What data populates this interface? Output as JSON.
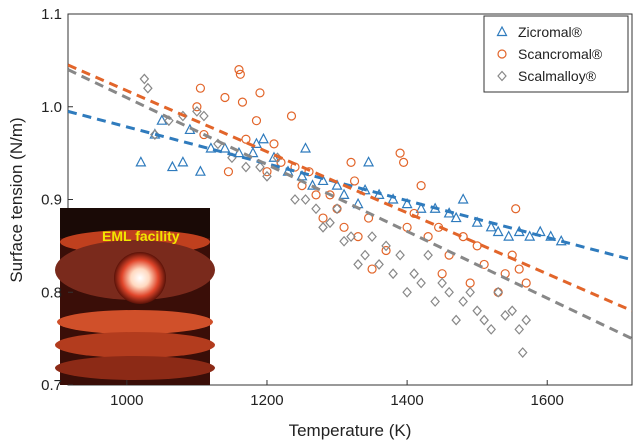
{
  "chart_data": {
    "type": "scatter",
    "x_label": "Temperature (K)",
    "y_label": "Surface tension (N/m)",
    "xlim": [
      916,
      1721
    ],
    "ylim": [
      0.7,
      1.1
    ],
    "xticks": [
      1000,
      1200,
      1400,
      1600
    ],
    "yticks": [
      0.7,
      0.8,
      0.9,
      {
        "value": 1,
        "label": "1.0"
      },
      1.1
    ],
    "legend": "top-right",
    "inset_label": "EML facility",
    "series": [
      {
        "name": "Zicromal®",
        "color": "#2f7bbd",
        "marker": "triangle",
        "x": [
          1020,
          1040,
          1050,
          1065,
          1080,
          1090,
          1105,
          1120,
          1140,
          1160,
          1180,
          1185,
          1195,
          1210,
          1230,
          1250,
          1255,
          1265,
          1280,
          1300,
          1310,
          1330,
          1340,
          1345,
          1360,
          1380,
          1400,
          1420,
          1440,
          1460,
          1470,
          1480,
          1500,
          1520,
          1530,
          1545,
          1560,
          1575,
          1590,
          1605,
          1620
        ],
        "values": [
          0.94,
          0.97,
          0.985,
          0.935,
          0.94,
          0.975,
          0.93,
          0.955,
          0.955,
          0.95,
          0.95,
          0.96,
          0.965,
          0.945,
          0.93,
          0.925,
          0.955,
          0.915,
          0.92,
          0.915,
          0.905,
          0.895,
          0.91,
          0.94,
          0.905,
          0.9,
          0.895,
          0.89,
          0.89,
          0.885,
          0.88,
          0.9,
          0.875,
          0.87,
          0.865,
          0.86,
          0.865,
          0.86,
          0.865,
          0.86,
          0.855
        ]
      },
      {
        "name": "Scancromal®",
        "color": "#e2652a",
        "marker": "circle",
        "x": [
          1100,
          1105,
          1110,
          1140,
          1145,
          1160,
          1162,
          1165,
          1170,
          1185,
          1190,
          1200,
          1210,
          1220,
          1235,
          1240,
          1250,
          1260,
          1270,
          1280,
          1290,
          1300,
          1310,
          1320,
          1325,
          1330,
          1345,
          1350,
          1370,
          1390,
          1395,
          1400,
          1410,
          1420,
          1430,
          1445,
          1450,
          1460,
          1480,
          1490,
          1500,
          1510,
          1530,
          1540,
          1550,
          1555,
          1560,
          1570
        ],
        "values": [
          1.0,
          1.02,
          0.97,
          1.01,
          0.93,
          1.04,
          1.035,
          1.005,
          0.965,
          0.985,
          1.015,
          0.93,
          0.96,
          0.94,
          0.99,
          0.935,
          0.915,
          0.93,
          0.905,
          0.88,
          0.905,
          0.89,
          0.87,
          0.94,
          0.92,
          0.86,
          0.88,
          0.825,
          0.845,
          0.95,
          0.94,
          0.87,
          0.885,
          0.915,
          0.86,
          0.87,
          0.82,
          0.84,
          0.86,
          0.81,
          0.85,
          0.83,
          0.8,
          0.82,
          0.84,
          0.89,
          0.825,
          0.81
        ]
      },
      {
        "name": "Scalmalloy®",
        "color": "#888888",
        "marker": "diamond",
        "x": [
          1025,
          1030,
          1040,
          1060,
          1080,
          1100,
          1110,
          1130,
          1150,
          1170,
          1190,
          1200,
          1215,
          1240,
          1255,
          1270,
          1280,
          1290,
          1300,
          1310,
          1320,
          1330,
          1340,
          1350,
          1360,
          1370,
          1380,
          1390,
          1400,
          1410,
          1420,
          1430,
          1440,
          1450,
          1460,
          1470,
          1480,
          1490,
          1500,
          1510,
          1520,
          1530,
          1540,
          1550,
          1560,
          1565,
          1570
        ],
        "values": [
          1.03,
          1.02,
          0.97,
          0.985,
          0.99,
          0.995,
          0.99,
          0.96,
          0.945,
          0.935,
          0.935,
          0.925,
          0.945,
          0.9,
          0.9,
          0.89,
          0.87,
          0.875,
          0.89,
          0.855,
          0.86,
          0.83,
          0.84,
          0.86,
          0.83,
          0.85,
          0.82,
          0.84,
          0.8,
          0.82,
          0.81,
          0.84,
          0.79,
          0.81,
          0.8,
          0.77,
          0.79,
          0.8,
          0.78,
          0.77,
          0.76,
          0.8,
          0.775,
          0.78,
          0.76,
          0.735,
          0.77
        ]
      }
    ],
    "fits": [
      {
        "color": "#2f7bbd",
        "x": [
          916,
          1721
        ],
        "values": [
          0.995,
          0.835
        ]
      },
      {
        "color": "#e2652a",
        "x": [
          916,
          1721
        ],
        "values": [
          1.045,
          0.78
        ]
      },
      {
        "color": "#888888",
        "x": [
          916,
          1721
        ],
        "values": [
          1.04,
          0.75
        ]
      }
    ]
  }
}
